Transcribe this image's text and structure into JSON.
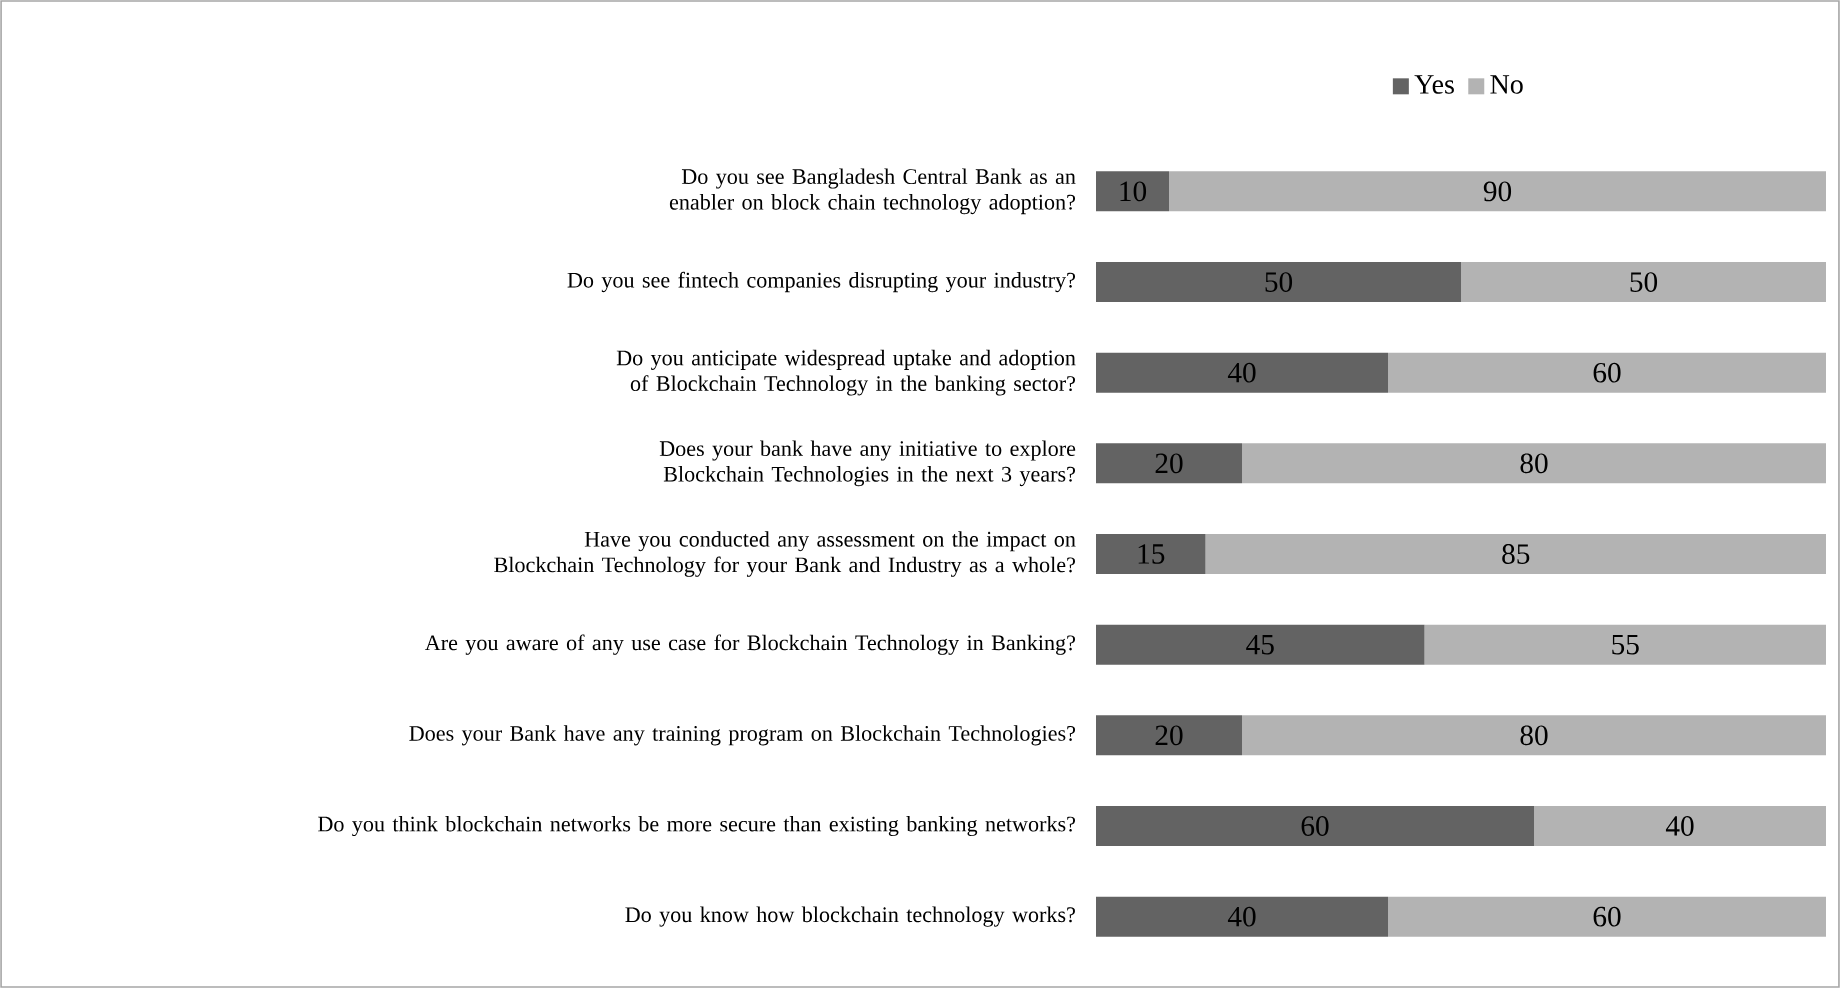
{
  "chart_data": {
    "type": "bar",
    "orientation": "horizontal",
    "stacked": true,
    "categories": [
      "Do you see Bangladesh Central Bank as an enabler on block chain technology adoption?",
      "Do you see fintech companies disrupting your industry?",
      "Do you anticipate widespread uptake and adoption of Blockchain Technology in the banking sector?",
      "Does your bank have any initiative to explore Blockchain Technologies in the next 3 years?",
      "Have you conducted any assessment on the impact on Blockchain Technology for your Bank and Industry as a whole?",
      "Are you aware of any use case for Blockchain Technology in Banking?",
      "Does your Bank have any training program on Blockchain Technologies?",
      "Do you think blockchain networks be more secure than existing banking networks?",
      "Do you know how blockchain technology works?"
    ],
    "series": [
      {
        "name": "Yes",
        "color": "#636363",
        "values": [
          10,
          50,
          40,
          20,
          15,
          45,
          20,
          60,
          40
        ]
      },
      {
        "name": "No",
        "color": "#b3b3b3",
        "values": [
          90,
          50,
          60,
          80,
          85,
          55,
          80,
          40,
          60
        ]
      }
    ],
    "legend": "top",
    "data_labels": true,
    "tick_labels": "y"
  }
}
